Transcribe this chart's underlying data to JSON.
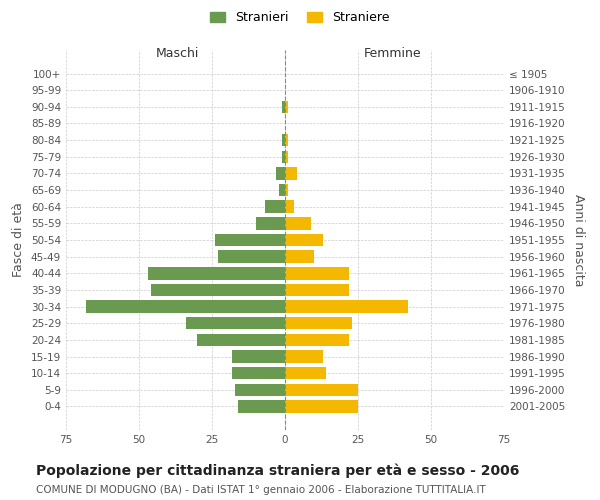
{
  "age_groups": [
    "100+",
    "95-99",
    "90-94",
    "85-89",
    "80-84",
    "75-79",
    "70-74",
    "65-69",
    "60-64",
    "55-59",
    "50-54",
    "45-49",
    "40-44",
    "35-39",
    "30-34",
    "25-29",
    "20-24",
    "15-19",
    "10-14",
    "5-9",
    "0-4"
  ],
  "birth_years": [
    "≤ 1905",
    "1906-1910",
    "1911-1915",
    "1916-1920",
    "1921-1925",
    "1926-1930",
    "1931-1935",
    "1936-1940",
    "1941-1945",
    "1946-1950",
    "1951-1955",
    "1956-1960",
    "1961-1965",
    "1966-1970",
    "1971-1975",
    "1976-1980",
    "1981-1985",
    "1986-1990",
    "1991-1995",
    "1996-2000",
    "2001-2005"
  ],
  "males": [
    0,
    0,
    1,
    0,
    1,
    1,
    3,
    2,
    7,
    10,
    24,
    23,
    47,
    46,
    68,
    34,
    30,
    18,
    18,
    17,
    16
  ],
  "females": [
    0,
    0,
    1,
    0,
    1,
    1,
    4,
    1,
    3,
    9,
    13,
    10,
    22,
    22,
    42,
    23,
    22,
    13,
    14,
    25,
    25
  ],
  "male_color": "#6a9a50",
  "female_color": "#f5b800",
  "background_color": "#ffffff",
  "grid_color": "#cccccc",
  "title": "Popolazione per cittadinanza straniera per età e sesso - 2006",
  "subtitle": "COMUNE DI MODUGNO (BA) - Dati ISTAT 1° gennaio 2006 - Elaborazione TUTTITALIA.IT",
  "xlabel_left": "Maschi",
  "xlabel_right": "Femmine",
  "ylabel_left": "Fasce di età",
  "ylabel_right": "Anni di nascita",
  "legend_male": "Stranieri",
  "legend_female": "Straniere",
  "xlim": 75,
  "title_fontsize": 10,
  "subtitle_fontsize": 7.5,
  "label_fontsize": 9,
  "tick_fontsize": 7.5
}
